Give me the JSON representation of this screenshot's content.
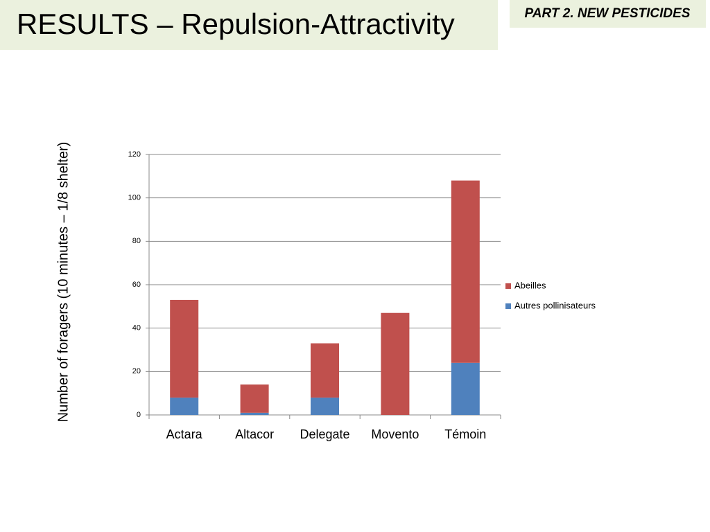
{
  "slide": {
    "title": "RESULTS – Repulsion-Attractivity",
    "section": "PART 2. NEW PESTICIDES"
  },
  "chart_data": {
    "type": "stacked_bar",
    "y_label": "Number of foragers (10 minutes – 1/8 shelter)",
    "categories": [
      "Actara",
      "Altacor",
      "Delegate",
      "Movento",
      "Témoin"
    ],
    "series": [
      {
        "name": "Autres pollinisateurs",
        "color": "#4f81bd",
        "values": [
          8,
          1,
          8,
          0,
          24
        ]
      },
      {
        "name": "Abeilles",
        "color": "#c0504d",
        "values": [
          45,
          13,
          25,
          47,
          84
        ]
      }
    ],
    "ylim": [
      0,
      120
    ],
    "yticks": [
      0,
      20,
      40,
      60,
      80,
      100,
      120
    ],
    "grid": true,
    "legend": "right"
  }
}
